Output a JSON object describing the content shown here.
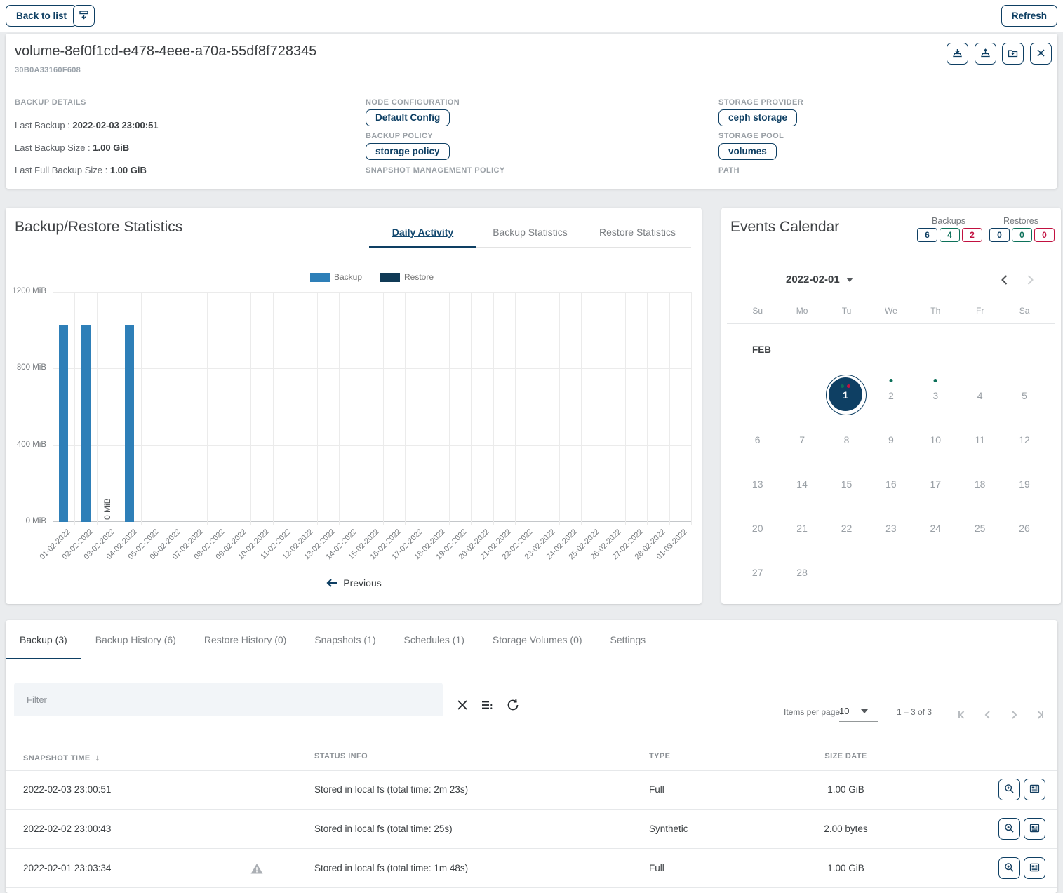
{
  "colors": {
    "primary": "#0e3f63",
    "bar_backup": "#2e7fb8",
    "bar_restore": "#103a56",
    "badge_green": "#0c7059",
    "badge_red": "#c11140"
  },
  "toolbar": {
    "back_label": "Back to list",
    "refresh_label": "Refresh"
  },
  "volume": {
    "title": "volume-8ef0f1cd-e478-4eee-a70a-55df8f728345",
    "id": "30B0A33160F608",
    "backup_details": {
      "heading": "BACKUP DETAILS",
      "rows": [
        {
          "label": "Last Backup :",
          "value": "2022-02-03 23:00:51"
        },
        {
          "label": "Last Backup Size :",
          "value": "1.00 GiB"
        },
        {
          "label": "Last Full Backup Size :",
          "value": "1.00 GiB"
        }
      ]
    },
    "node": {
      "node_config_heading": "NODE CONFIGURATION",
      "node_config_chip": "Default Config",
      "backup_policy_heading": "BACKUP POLICY",
      "backup_policy_chip": "storage policy",
      "snapshot_policy_heading": "SNAPSHOT MANAGEMENT POLICY"
    },
    "storage": {
      "provider_heading": "STORAGE PROVIDER",
      "provider_chip": "ceph storage",
      "pool_heading": "STORAGE POOL",
      "pool_chip": "volumes",
      "path_heading": "PATH"
    }
  },
  "stats": {
    "title": "Backup/Restore Statistics",
    "tabs": [
      {
        "label": "Daily Activity",
        "active": true
      },
      {
        "label": "Backup Statistics",
        "active": false
      },
      {
        "label": "Restore Statistics",
        "active": false
      }
    ],
    "previous_label": "Previous"
  },
  "chart_data": {
    "type": "bar",
    "title": "Daily Activity",
    "xlabel": "",
    "ylabel": "MiB",
    "ylim": [
      0,
      1200
    ],
    "grid": true,
    "legend_position": "top",
    "y_ticks": [
      [
        0,
        "0 MiB"
      ],
      [
        400,
        "400 MiB"
      ],
      [
        800,
        "800 MiB"
      ],
      [
        1200,
        "1200 MiB"
      ]
    ],
    "categories": [
      "01-02-2022",
      "02-02-2022",
      "03-02-2022",
      "04-02-2022",
      "05-02-2022",
      "06-02-2022",
      "07-02-2022",
      "08-02-2022",
      "09-02-2022",
      "10-02-2022",
      "11-02-2022",
      "12-02-2022",
      "13-02-2022",
      "14-02-2022",
      "15-02-2022",
      "16-02-2022",
      "17-02-2022",
      "18-02-2022",
      "19-02-2022",
      "20-02-2022",
      "21-02-2022",
      "22-02-2022",
      "23-02-2022",
      "24-02-2022",
      "25-02-2022",
      "26-02-2022",
      "27-02-2022",
      "28-02-2022",
      "01-03-2022"
    ],
    "series": [
      {
        "name": "Backup",
        "color": "#2e7fb8",
        "values": [
          1024,
          1024,
          0,
          1024,
          0,
          0,
          0,
          0,
          0,
          0,
          0,
          0,
          0,
          0,
          0,
          0,
          0,
          0,
          0,
          0,
          0,
          0,
          0,
          0,
          0,
          0,
          0,
          0,
          0
        ]
      },
      {
        "name": "Restore",
        "color": "#103a56",
        "values": [
          0,
          0,
          0,
          0,
          0,
          0,
          0,
          0,
          0,
          0,
          0,
          0,
          0,
          0,
          0,
          0,
          0,
          0,
          0,
          0,
          0,
          0,
          0,
          0,
          0,
          0,
          0,
          0,
          0
        ]
      }
    ],
    "zero_label": {
      "index": 2,
      "text": "0 MiB"
    }
  },
  "calendar": {
    "title": "Events Calendar",
    "backups_label": "Backups",
    "backups_counts": [
      "6",
      "4",
      "2"
    ],
    "restores_label": "Restores",
    "restores_counts": [
      "0",
      "0",
      "0"
    ],
    "date_selector": "2022-02-01",
    "month_label": "FEB",
    "weekdays": [
      "Su",
      "Mo",
      "Tu",
      "We",
      "Th",
      "Fr",
      "Sa"
    ],
    "weeks": [
      [
        null,
        null,
        {
          "day": "1",
          "selected": true,
          "dots": [
            "green",
            "red"
          ]
        },
        {
          "day": "2",
          "dots": [
            "green"
          ]
        },
        {
          "day": "3",
          "dots": [
            "green"
          ]
        },
        {
          "day": "4"
        },
        {
          "day": "5"
        }
      ],
      [
        {
          "day": "6"
        },
        {
          "day": "7"
        },
        {
          "day": "8"
        },
        {
          "day": "9"
        },
        {
          "day": "10"
        },
        {
          "day": "11"
        },
        {
          "day": "12"
        }
      ],
      [
        {
          "day": "13"
        },
        {
          "day": "14"
        },
        {
          "day": "15"
        },
        {
          "day": "16"
        },
        {
          "day": "17"
        },
        {
          "day": "18"
        },
        {
          "day": "19"
        }
      ],
      [
        {
          "day": "20"
        },
        {
          "day": "21"
        },
        {
          "day": "22"
        },
        {
          "day": "23"
        },
        {
          "day": "24"
        },
        {
          "day": "25"
        },
        {
          "day": "26"
        }
      ],
      [
        {
          "day": "27"
        },
        {
          "day": "28"
        },
        null,
        null,
        null,
        null,
        null
      ]
    ]
  },
  "details": {
    "tabs": [
      {
        "label": "Backup (3)",
        "active": true
      },
      {
        "label": "Backup History (6)",
        "active": false
      },
      {
        "label": "Restore History (0)",
        "active": false
      },
      {
        "label": "Snapshots (1)",
        "active": false
      },
      {
        "label": "Schedules (1)",
        "active": false
      },
      {
        "label": "Storage Volumes (0)",
        "active": false
      },
      {
        "label": "Settings",
        "active": false
      }
    ],
    "filter_placeholder": "Filter",
    "paginator": {
      "items_per_page_label": "Items per page:",
      "page_size": "10",
      "range_label": "1 – 3 of 3"
    },
    "table": {
      "columns": [
        "SNAPSHOT TIME",
        "STATUS INFO",
        "TYPE",
        "SIZE DATE"
      ],
      "rows": [
        {
          "snapshot_time": "2022-02-03 23:00:51",
          "warning": false,
          "status": "Stored in local fs (total time: 2m 23s)",
          "type": "Full",
          "size": "1.00 GiB"
        },
        {
          "snapshot_time": "2022-02-02 23:00:43",
          "warning": false,
          "status": "Stored in local fs (total time: 25s)",
          "type": "Synthetic",
          "size": "2.00 bytes"
        },
        {
          "snapshot_time": "2022-02-01 23:03:34",
          "warning": true,
          "status": "Stored in local fs (total time: 1m 48s)",
          "type": "Full",
          "size": "1.00 GiB"
        }
      ]
    }
  }
}
